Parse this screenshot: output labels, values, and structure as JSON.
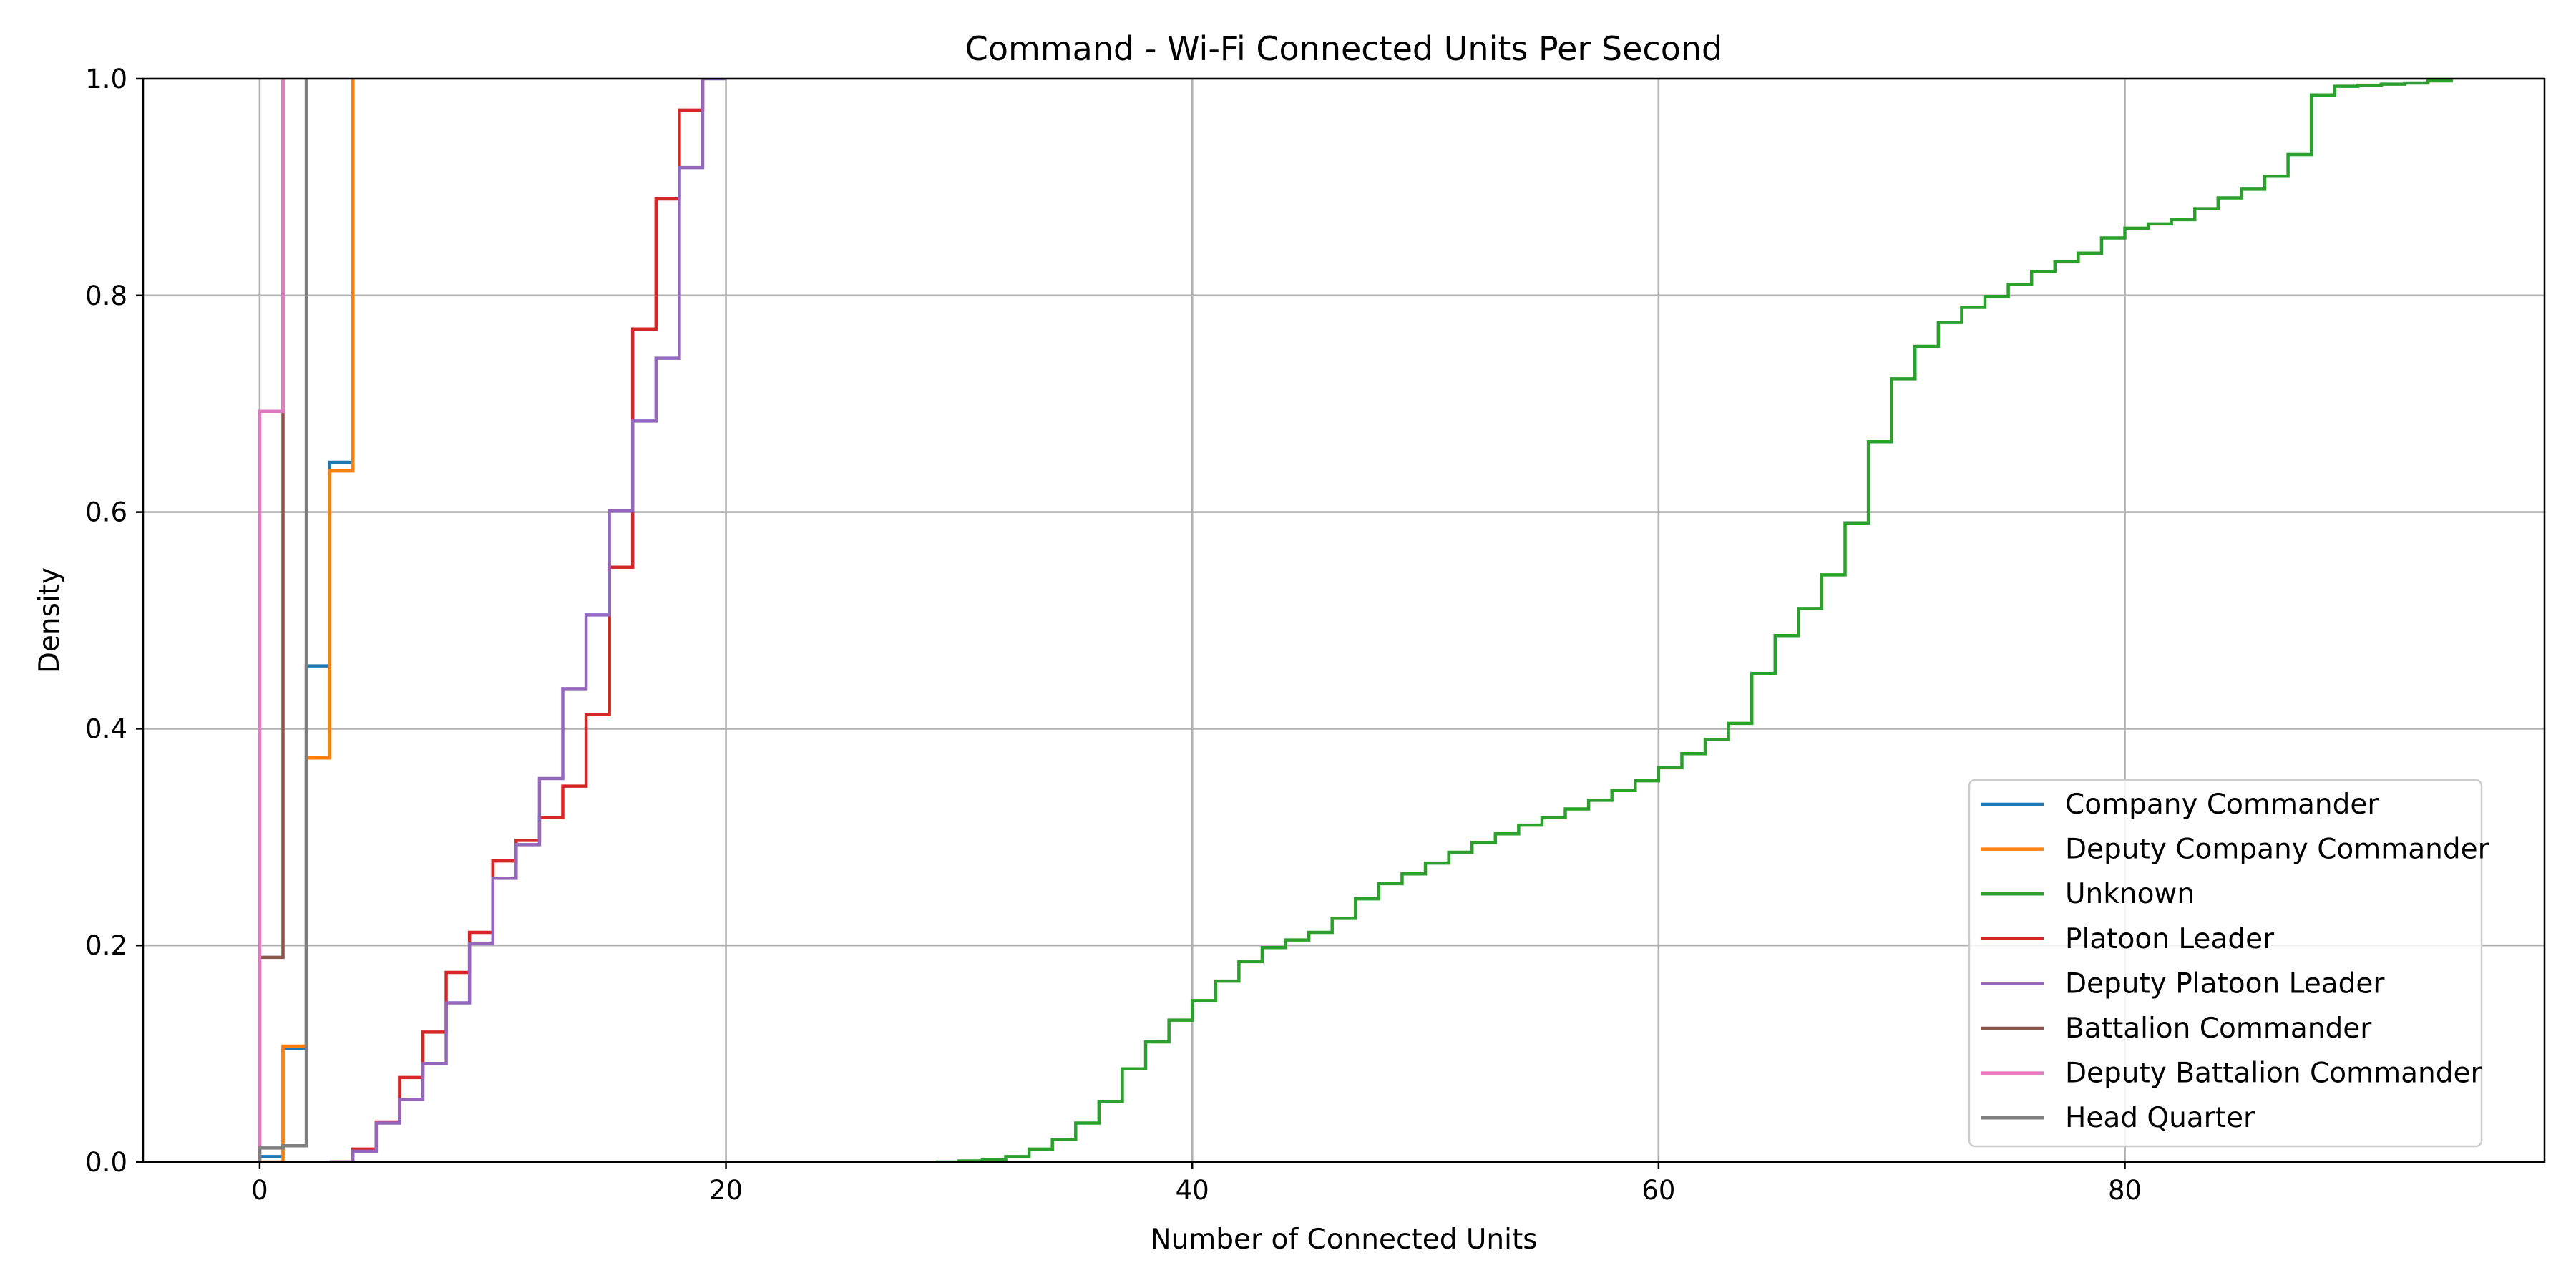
{
  "chart_data": {
    "type": "line",
    "title": "Command - Wi-Fi Connected Units Per Second",
    "xlabel": "Number of Connected Units",
    "ylabel": "Density",
    "xlim": [
      -5,
      98
    ],
    "ylim": [
      0,
      1
    ],
    "xticks": [
      0,
      20,
      40,
      60,
      80
    ],
    "yticks": [
      0.0,
      0.2,
      0.4,
      0.6,
      0.8,
      1.0
    ],
    "xtick_labels": [
      "0",
      "20",
      "40",
      "60",
      "80"
    ],
    "ytick_labels": [
      "0.0",
      "0.2",
      "0.4",
      "0.6",
      "0.8",
      "1.0"
    ],
    "grid": true,
    "legend_position": "bottom-right",
    "step": "post",
    "series": [
      {
        "name": "Company Commander",
        "color": "#1f77b4",
        "x": [
          0,
          1,
          2,
          3,
          4
        ],
        "y": [
          0.005,
          0.105,
          0.458,
          0.646,
          1.0
        ]
      },
      {
        "name": "Deputy Company Commander",
        "color": "#ff7f0e",
        "x": [
          0,
          1,
          2,
          3,
          4
        ],
        "y": [
          0.0,
          0.107,
          0.373,
          0.638,
          1.0
        ]
      },
      {
        "name": "Unknown",
        "color": "#2ca02c",
        "x": [
          29,
          30,
          31,
          32,
          33,
          34,
          35,
          36,
          37,
          38,
          39,
          40,
          41,
          42,
          43,
          44,
          45,
          46,
          47,
          48,
          49,
          50,
          51,
          52,
          53,
          54,
          55,
          56,
          57,
          58,
          59,
          60,
          61,
          62,
          63,
          64,
          65,
          66,
          67,
          68,
          69,
          70,
          71,
          72,
          73,
          74,
          75,
          76,
          77,
          78,
          79,
          80,
          81,
          82,
          83,
          84,
          85,
          86,
          87,
          88,
          89,
          90,
          91,
          92,
          93,
          94
        ],
        "y": [
          0.0,
          0.001,
          0.002,
          0.005,
          0.012,
          0.021,
          0.036,
          0.056,
          0.086,
          0.111,
          0.131,
          0.149,
          0.167,
          0.185,
          0.198,
          0.205,
          0.212,
          0.225,
          0.243,
          0.257,
          0.266,
          0.276,
          0.286,
          0.295,
          0.303,
          0.311,
          0.318,
          0.326,
          0.334,
          0.343,
          0.352,
          0.364,
          0.377,
          0.39,
          0.405,
          0.451,
          0.486,
          0.511,
          0.542,
          0.59,
          0.665,
          0.723,
          0.753,
          0.775,
          0.789,
          0.799,
          0.81,
          0.822,
          0.831,
          0.839,
          0.853,
          0.862,
          0.866,
          0.87,
          0.88,
          0.89,
          0.898,
          0.91,
          0.93,
          0.985,
          0.993,
          0.994,
          0.995,
          0.996,
          0.998,
          1.0
        ]
      },
      {
        "name": "Platoon Leader",
        "color": "#d62728",
        "x": [
          3,
          4,
          5,
          6,
          7,
          8,
          9,
          10,
          11,
          12,
          13,
          14,
          15,
          16,
          17,
          18,
          19
        ],
        "y": [
          0.0,
          0.012,
          0.037,
          0.078,
          0.12,
          0.175,
          0.212,
          0.278,
          0.297,
          0.318,
          0.347,
          0.413,
          0.549,
          0.769,
          0.889,
          0.971,
          1.0
        ]
      },
      {
        "name": "Deputy Platoon Leader",
        "color": "#9467bd",
        "x": [
          3,
          4,
          5,
          6,
          7,
          8,
          9,
          10,
          11,
          12,
          13,
          14,
          15,
          16,
          17,
          18,
          19,
          20
        ],
        "y": [
          0.0,
          0.01,
          0.036,
          0.058,
          0.091,
          0.147,
          0.202,
          0.262,
          0.293,
          0.354,
          0.437,
          0.505,
          0.601,
          0.684,
          0.742,
          0.918,
          1.0,
          1.0
        ]
      },
      {
        "name": "Battalion Commander",
        "color": "#8c564b",
        "x": [
          0,
          1
        ],
        "y": [
          0.189,
          1.0
        ]
      },
      {
        "name": "Deputy Battalion Commander",
        "color": "#e377c2",
        "x": [
          0,
          1
        ],
        "y": [
          0.693,
          1.0
        ]
      },
      {
        "name": "Head Quarter",
        "color": "#7f7f7f",
        "x": [
          0,
          1,
          2
        ],
        "y": [
          0.013,
          0.015,
          1.0
        ]
      }
    ]
  }
}
